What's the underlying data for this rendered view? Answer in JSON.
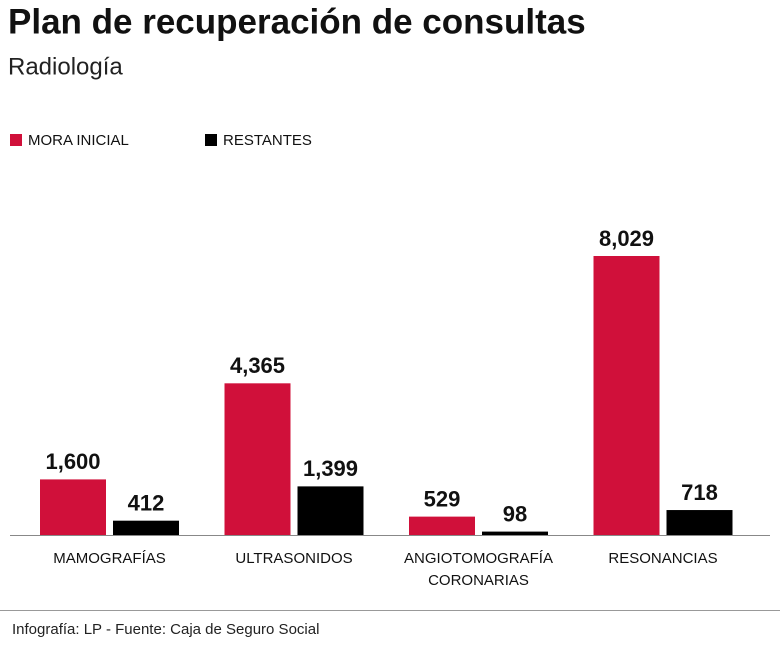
{
  "chart_data": {
    "type": "bar",
    "title": "Plan de recuperación de consultas",
    "subtitle": "Radiología",
    "categories": [
      "MAMOGRAFÍAS",
      "ULTRASONIDOS",
      "ANGIOTOMOGRAFÍA CORONARIAS",
      "RESONANCIAS"
    ],
    "series": [
      {
        "name": "MORA INICIAL",
        "color": "#d0103a",
        "values": [
          1600,
          4365,
          529,
          8029
        ],
        "value_labels": [
          "1,600",
          "4,365",
          "529",
          "8,029"
        ]
      },
      {
        "name": "RESTANTES",
        "color": "#000000",
        "values": [
          412,
          1399,
          98,
          718
        ],
        "value_labels": [
          "412",
          "1,399",
          "98",
          "718"
        ]
      }
    ],
    "source": "Infografía: LP - Fuente: Caja de Seguro Social"
  }
}
